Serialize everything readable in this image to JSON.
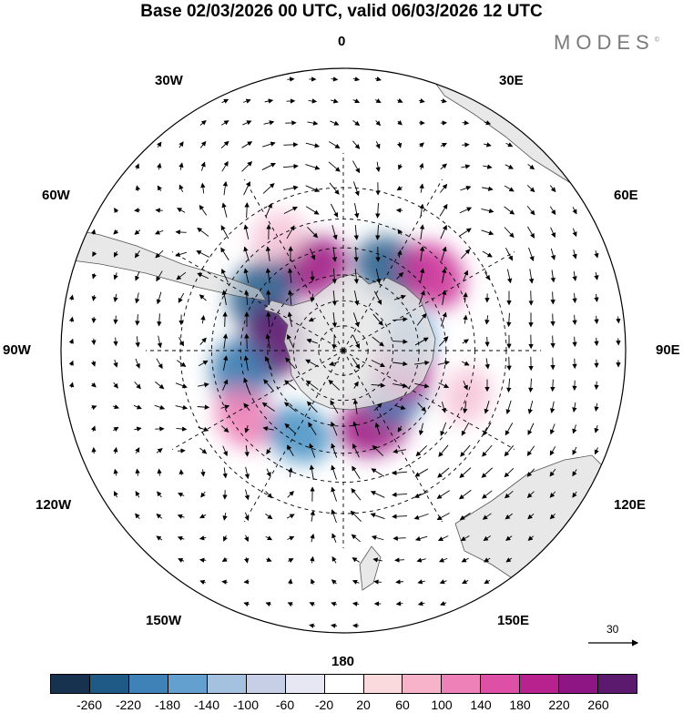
{
  "header": {
    "title": "Base 02/03/2026 00 UTC, valid 06/03/2026 12 UTC",
    "brand": "MODES",
    "brand_mark": "©"
  },
  "map": {
    "projection": "south polar stereographic",
    "longitude_labels": {
      "top": "0",
      "bottom": "180",
      "e30": "30E",
      "e60": "60E",
      "e90": "90E",
      "e120": "120E",
      "e150": "150E",
      "w30": "30W",
      "w60": "60W",
      "w90": "90W",
      "w120": "120W",
      "w150": "150W"
    },
    "reference_vector_label": "30",
    "anomaly_centers": [
      {
        "lon": 30,
        "lat": -53,
        "value": -240,
        "color": "#2b5f8e"
      },
      {
        "lon": -20,
        "lat": -55,
        "value": 220,
        "color": "#a01e86"
      },
      {
        "lon": 50,
        "lat": -45,
        "value": 200,
        "color": "#cc3399"
      },
      {
        "lon": -55,
        "lat": -51,
        "value": -240,
        "color": "#2b5f8e"
      },
      {
        "lon": -82,
        "lat": -62,
        "value": 270,
        "color": "#5b1a6e"
      },
      {
        "lon": -103,
        "lat": -49,
        "value": -200,
        "color": "#3c7cb0"
      },
      {
        "lon": -124,
        "lat": -44,
        "value": 130,
        "color": "#ee82b8"
      },
      {
        "lon": -152,
        "lat": -53,
        "value": -160,
        "color": "#4d93c5"
      },
      {
        "lon": 158,
        "lat": -58,
        "value": 220,
        "color": "#a01e86"
      },
      {
        "lon": 126,
        "lat": -63,
        "value": -200,
        "color": "#3c7cb0"
      },
      {
        "lon": 103,
        "lat": -65,
        "value": 200,
        "color": "#cc3399"
      },
      {
        "lon": 77,
        "lat": -63,
        "value": -120,
        "color": "#7aaed6"
      },
      {
        "lon": 110,
        "lat": -40,
        "value": 60,
        "color": "#f6c6d9"
      },
      {
        "lon": -30,
        "lat": -40,
        "value": 60,
        "color": "#f6c6d9"
      }
    ]
  },
  "colorbar": {
    "colors": [
      "#16324f",
      "#1f5a87",
      "#3f82b8",
      "#64a0cf",
      "#a4c1e0",
      "#c7cfe6",
      "#e6e7f2",
      "#ffffff",
      "#fadadd",
      "#f6b3c9",
      "#ee82b8",
      "#de4fa6",
      "#b7228f",
      "#8e1684",
      "#5b1a6e"
    ],
    "ticks": [
      "-260",
      "-220",
      "-180",
      "-140",
      "-100",
      "-60",
      "-20",
      "20",
      "60",
      "100",
      "140",
      "180",
      "220",
      "260"
    ]
  }
}
